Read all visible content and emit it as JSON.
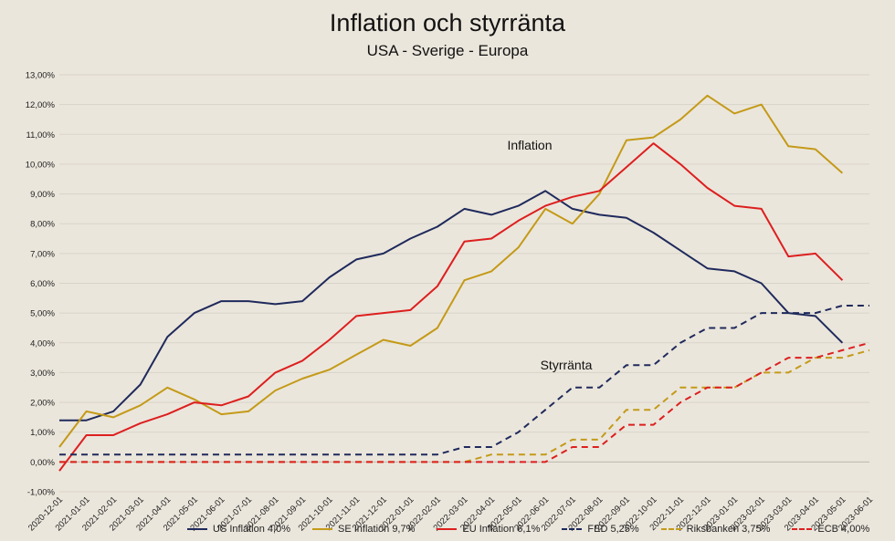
{
  "chart_data": {
    "type": "line",
    "title": "Inflation och styrränta",
    "subtitle": "USA - Sverige - Europa",
    "annotations": [
      "Inflation",
      "Styrränta"
    ],
    "ylim": [
      -1,
      13
    ],
    "y_ticks": [
      "-1,00%",
      "0,00%",
      "1,00%",
      "2,00%",
      "3,00%",
      "4,00%",
      "5,00%",
      "6,00%",
      "7,00%",
      "8,00%",
      "9,00%",
      "10,00%",
      "11,00%",
      "12,00%",
      "13,00%"
    ],
    "grid": true,
    "legend_position": "bottom",
    "x": [
      "2020-12-01",
      "2021-01-01",
      "2021-02-01",
      "2021-03-01",
      "2021-04-01",
      "2021-05-01",
      "2021-06-01",
      "2021-07-01",
      "2021-08-01",
      "2021-09-01",
      "2021-10-01",
      "2021-11-01",
      "2021-12-01",
      "2022-01-01",
      "2022-02-01",
      "2022-03-01",
      "2022-04-01",
      "2022-05-01",
      "2022-06-01",
      "2022-07-01",
      "2022-08-01",
      "2022-09-01",
      "2022-10-01",
      "2022-11-01",
      "2022-12-01",
      "2023-01-01",
      "2023-02-01",
      "2023-03-01",
      "2023-04-01",
      "2023-05-01",
      "2023-06-01"
    ],
    "series": [
      {
        "name": "US Inflation 4,0%",
        "color": "#1f2a5c",
        "dash": false,
        "values": [
          1.4,
          1.4,
          1.7,
          2.6,
          4.2,
          5.0,
          5.4,
          5.4,
          5.3,
          5.4,
          6.2,
          6.8,
          7.0,
          7.5,
          7.9,
          8.5,
          8.3,
          8.6,
          9.1,
          8.5,
          8.3,
          8.2,
          7.7,
          7.1,
          6.5,
          6.4,
          6.0,
          5.0,
          4.9,
          4.0,
          null
        ]
      },
      {
        "name": "SE Inflation 9,7%",
        "color": "#c49a18",
        "dash": false,
        "values": [
          0.5,
          1.7,
          1.5,
          1.9,
          2.5,
          2.1,
          1.6,
          1.7,
          2.4,
          2.8,
          3.1,
          3.6,
          4.1,
          3.9,
          4.5,
          6.1,
          6.4,
          7.2,
          8.5,
          8.0,
          9.0,
          10.8,
          10.9,
          11.5,
          12.3,
          11.7,
          12.0,
          10.6,
          10.5,
          9.7,
          null
        ]
      },
      {
        "name": "EU Inflation 6,1%",
        "color": "#dd1f1f",
        "dash": false,
        "values": [
          -0.3,
          0.9,
          0.9,
          1.3,
          1.6,
          2.0,
          1.9,
          2.2,
          3.0,
          3.4,
          4.1,
          4.9,
          5.0,
          5.1,
          5.9,
          7.4,
          7.5,
          8.1,
          8.6,
          8.9,
          9.1,
          9.9,
          10.7,
          10.0,
          9.2,
          8.6,
          8.5,
          6.9,
          7.0,
          6.1,
          null
        ]
      },
      {
        "name": "FED 5,25%",
        "color": "#1f2a5c",
        "dash": true,
        "values": [
          0.25,
          0.25,
          0.25,
          0.25,
          0.25,
          0.25,
          0.25,
          0.25,
          0.25,
          0.25,
          0.25,
          0.25,
          0.25,
          0.25,
          0.25,
          0.5,
          0.5,
          1.0,
          1.75,
          2.5,
          2.5,
          3.25,
          3.25,
          4.0,
          4.5,
          4.5,
          5.0,
          5.0,
          5.0,
          5.25,
          5.25
        ]
      },
      {
        "name": "Riksbanken 3,75%",
        "color": "#c49a18",
        "dash": true,
        "values": [
          0,
          0,
          0,
          0,
          0,
          0,
          0,
          0,
          0,
          0,
          0,
          0,
          0,
          0,
          0,
          0,
          0.25,
          0.25,
          0.25,
          0.75,
          0.75,
          1.75,
          1.75,
          2.5,
          2.5,
          2.5,
          3.0,
          3.0,
          3.5,
          3.5,
          3.75
        ]
      },
      {
        "name": "ECB 4,00%",
        "color": "#dd1f1f",
        "dash": true,
        "values": [
          0,
          0,
          0,
          0,
          0,
          0,
          0,
          0,
          0,
          0,
          0,
          0,
          0,
          0,
          0,
          0,
          0,
          0,
          0,
          0.5,
          0.5,
          1.25,
          1.25,
          2.0,
          2.5,
          2.5,
          3.0,
          3.5,
          3.5,
          3.75,
          4.0
        ]
      }
    ]
  }
}
